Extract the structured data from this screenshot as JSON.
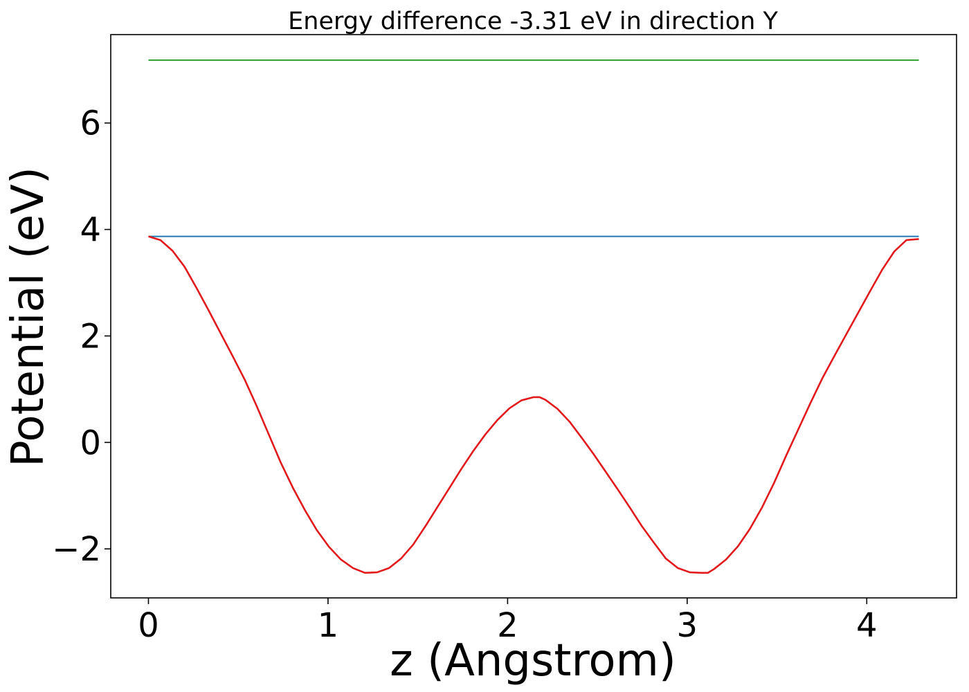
{
  "chart_data": {
    "type": "line",
    "title": "Energy difference -3.31 eV in direction Y",
    "xlabel": "z (Angstrom)",
    "ylabel": "Potential (eV)",
    "xlim": [
      -0.21,
      4.5
    ],
    "ylim": [
      -2.92,
      7.66
    ],
    "xticks": [
      0,
      1,
      2,
      3,
      4
    ],
    "xtick_labels": [
      "0",
      "1",
      "2",
      "3",
      "4"
    ],
    "yticks": [
      -2,
      0,
      2,
      4,
      6
    ],
    "ytick_labels": [
      "−2",
      "0",
      "2",
      "4",
      "6"
    ],
    "grid": false,
    "legend": "none",
    "series": [
      {
        "color": "#2ca02c",
        "x": [
          0,
          4.29
        ],
        "y": [
          7.18,
          7.18
        ]
      },
      {
        "color": "#1f77b4",
        "x": [
          0,
          4.29
        ],
        "y": [
          3.87,
          3.87
        ]
      },
      {
        "color": "#e31a1c",
        "x": [
          0.0,
          0.067,
          0.134,
          0.201,
          0.268,
          0.335,
          0.402,
          0.469,
          0.536,
          0.603,
          0.67,
          0.737,
          0.804,
          0.871,
          0.938,
          1.005,
          1.072,
          1.139,
          1.206,
          1.273,
          1.34,
          1.407,
          1.474,
          1.541,
          1.608,
          1.675,
          1.742,
          1.809,
          1.876,
          1.943,
          2.01,
          2.077,
          2.144,
          2.178,
          2.211,
          2.278,
          2.345,
          2.412,
          2.479,
          2.546,
          2.613,
          2.68,
          2.747,
          2.814,
          2.881,
          2.948,
          3.015,
          3.082,
          3.115,
          3.149,
          3.216,
          3.283,
          3.35,
          3.417,
          3.484,
          3.551,
          3.618,
          3.685,
          3.752,
          3.819,
          3.886,
          3.953,
          4.02,
          4.087,
          4.154,
          4.221,
          4.29
        ],
        "y": [
          3.87,
          3.8,
          3.6,
          3.3,
          2.9,
          2.48,
          2.05,
          1.62,
          1.18,
          0.68,
          0.15,
          -0.38,
          -0.85,
          -1.27,
          -1.65,
          -1.96,
          -2.2,
          -2.36,
          -2.45,
          -2.44,
          -2.36,
          -2.18,
          -1.92,
          -1.58,
          -1.22,
          -0.86,
          -0.5,
          -0.16,
          0.15,
          0.42,
          0.64,
          0.79,
          0.85,
          0.85,
          0.8,
          0.63,
          0.39,
          0.09,
          -0.22,
          -0.55,
          -0.88,
          -1.22,
          -1.57,
          -1.88,
          -2.18,
          -2.36,
          -2.44,
          -2.45,
          -2.45,
          -2.38,
          -2.2,
          -1.95,
          -1.62,
          -1.22,
          -0.76,
          -0.25,
          0.24,
          0.73,
          1.2,
          1.62,
          2.03,
          2.44,
          2.85,
          3.25,
          3.59,
          3.8,
          3.82
        ]
      }
    ]
  }
}
